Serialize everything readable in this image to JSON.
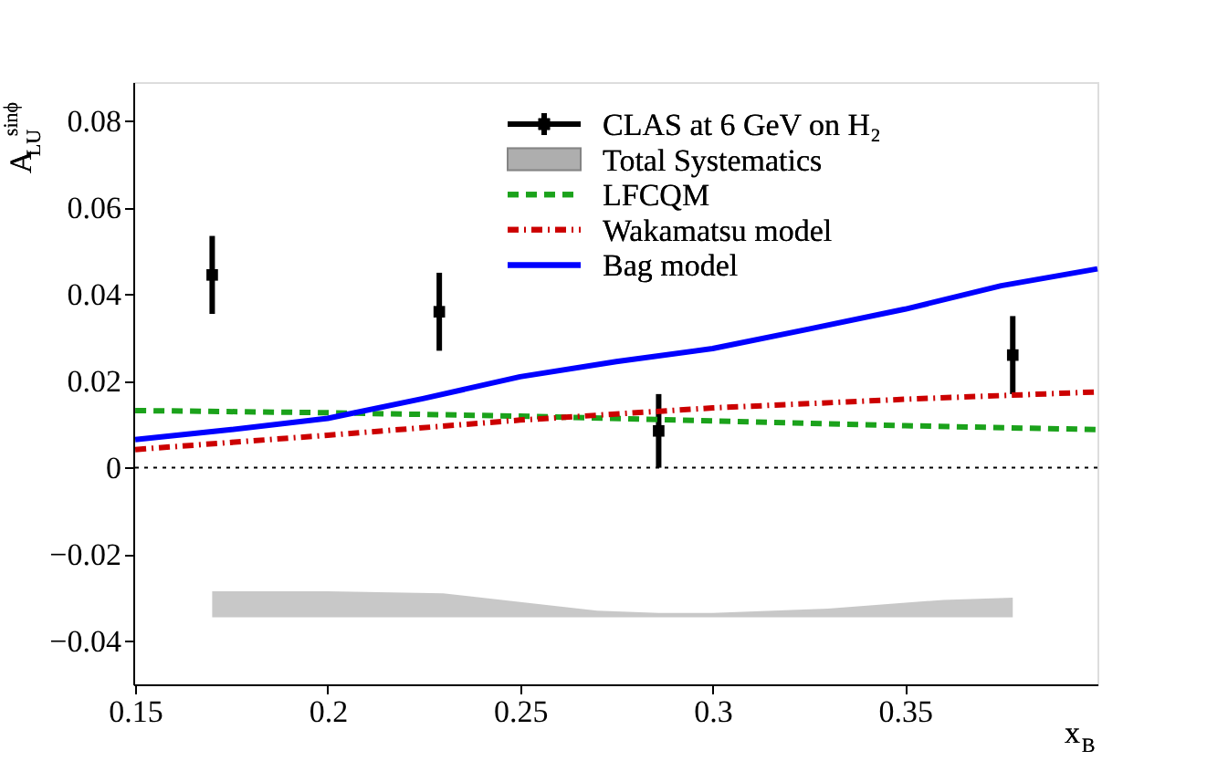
{
  "chart_data": {
    "type": "line",
    "xlabel": "x$_{B}$",
    "ylabel": "A$_{LU}$$^{sinϕ}$",
    "xlim": [
      0.1495,
      0.4
    ],
    "ylim": [
      -0.05,
      0.089
    ],
    "xticks": [
      0.15,
      0.2,
      0.25,
      0.3,
      0.35
    ],
    "yticks": [
      {
        "value": -0.04,
        "label": "−0.04"
      },
      {
        "value": -0.02,
        "label": "−0.02"
      },
      0,
      0.02,
      0.04,
      0.06,
      0.08
    ],
    "legend": "top right",
    "ref_lines": [
      {
        "axis": "y",
        "value": 0,
        "color": "#000000",
        "line_style": "dotted"
      }
    ],
    "series": [
      {
        "name": "CLAS at 6 GeV on H₂",
        "type": "scatter",
        "color": "#000000",
        "marker": "square",
        "x": [
          0.17,
          0.229,
          0.286,
          0.378
        ],
        "values": [
          0.0445,
          0.036,
          0.0085,
          0.026
        ],
        "errors": [
          0.009,
          0.009,
          0.0085,
          0.009
        ]
      },
      {
        "name": "Total Systematics",
        "type": "area",
        "color": "#9a9a9a",
        "x": [
          0.17,
          0.2,
          0.23,
          0.25,
          0.27,
          0.286,
          0.3,
          0.33,
          0.36,
          0.378
        ],
        "values": [
          null,
          null,
          null,
          null,
          null,
          null,
          null,
          null,
          null,
          null
        ],
        "upper": [
          -0.0285,
          -0.0285,
          -0.029,
          -0.031,
          -0.033,
          -0.0335,
          -0.0335,
          -0.0325,
          -0.0305,
          -0.03
        ],
        "lower": [
          -0.0345,
          -0.0345,
          -0.0345,
          -0.0345,
          -0.0345,
          -0.0345,
          -0.0345,
          -0.0345,
          -0.0345,
          -0.0345
        ]
      },
      {
        "name": "LFCQM",
        "color": "#1ba21b",
        "line_style": "dashed",
        "x": [
          0.15,
          0.2,
          0.25,
          0.3,
          0.35,
          0.4
        ],
        "values": [
          0.0132,
          0.0127,
          0.0119,
          0.0108,
          0.0097,
          0.0088
        ]
      },
      {
        "name": "Wakamatsu model",
        "color": "#cc0000",
        "line_style": "dashdot",
        "x": [
          0.15,
          0.2,
          0.25,
          0.3,
          0.35,
          0.4
        ],
        "values": [
          0.0042,
          0.0075,
          0.011,
          0.0138,
          0.0158,
          0.0175
        ]
      },
      {
        "name": "Bag model",
        "color": "#0000ff",
        "line_style": "solid",
        "x": [
          0.15,
          0.175,
          0.2,
          0.225,
          0.25,
          0.275,
          0.3,
          0.325,
          0.35,
          0.375,
          0.4
        ],
        "values": [
          0.0065,
          0.0088,
          0.0114,
          0.016,
          0.021,
          0.0245,
          0.0275,
          0.032,
          0.0366,
          0.042,
          0.0459
        ]
      }
    ]
  }
}
